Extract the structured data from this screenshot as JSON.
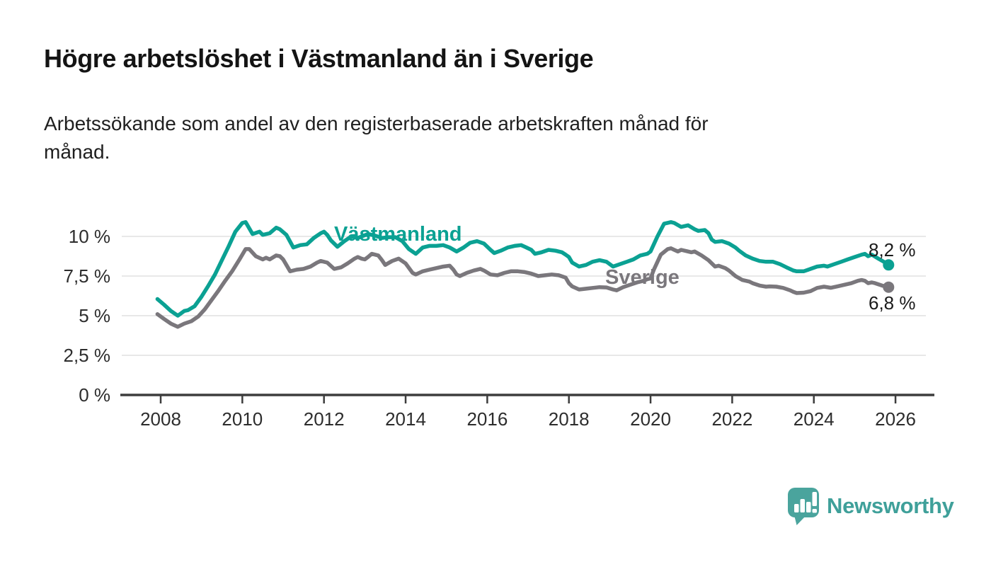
{
  "header": {
    "title": "Högre arbetslöshet i Västmanland än i Sverige",
    "subtitle_line1": "Arbetssökande som andel av den registerbaserade arbetskraften månad för",
    "subtitle_line2": "månad."
  },
  "colors": {
    "vastmanland": "#0BA193",
    "sverige": "#7A777C",
    "brand": "#45A39C",
    "gridline": "#D9D9D9",
    "axis": "#3D3D3D",
    "text": "#1A1A1A"
  },
  "chart_data": {
    "type": "line",
    "title": "Högre arbetslöshet i Västmanland än i Sverige",
    "xlabel": "",
    "ylabel": "",
    "unit": "%",
    "grid": "horizontal",
    "legend_position": "inline-labels",
    "ylim": [
      0,
      11.2
    ],
    "x_axis": {
      "ticks": [
        2008,
        2010,
        2012,
        2014,
        2016,
        2018,
        2020,
        2022,
        2024,
        2026
      ]
    },
    "y_axis": {
      "ticks": [
        {
          "value": 0,
          "label": "0 %"
        },
        {
          "value": 2.5,
          "label": "2,5 %"
        },
        {
          "value": 5,
          "label": "5 %"
        },
        {
          "value": 7.5,
          "label": "7,5 %"
        },
        {
          "value": 10,
          "label": "10 %"
        }
      ]
    },
    "series": [
      {
        "name": "Västmanland",
        "color": "#0BA193",
        "end_label": "8,2 %",
        "end_value": 8.2,
        "points": [
          [
            2007.92,
            6.05
          ],
          [
            2008.08,
            5.7
          ],
          [
            2008.25,
            5.3
          ],
          [
            2008.42,
            5.0
          ],
          [
            2008.58,
            5.3
          ],
          [
            2008.67,
            5.35
          ],
          [
            2008.83,
            5.6
          ],
          [
            2009.0,
            6.2
          ],
          [
            2009.17,
            6.9
          ],
          [
            2009.33,
            7.6
          ],
          [
            2009.5,
            8.5
          ],
          [
            2009.67,
            9.4
          ],
          [
            2009.83,
            10.3
          ],
          [
            2010.0,
            10.85
          ],
          [
            2010.08,
            10.9
          ],
          [
            2010.25,
            10.15
          ],
          [
            2010.42,
            10.3
          ],
          [
            2010.5,
            10.1
          ],
          [
            2010.67,
            10.2
          ],
          [
            2010.83,
            10.55
          ],
          [
            2010.92,
            10.45
          ],
          [
            2011.08,
            10.1
          ],
          [
            2011.25,
            9.3
          ],
          [
            2011.42,
            9.45
          ],
          [
            2011.58,
            9.5
          ],
          [
            2011.75,
            9.9
          ],
          [
            2011.92,
            10.2
          ],
          [
            2012.0,
            10.3
          ],
          [
            2012.08,
            10.1
          ],
          [
            2012.17,
            9.75
          ],
          [
            2012.33,
            9.35
          ],
          [
            2012.5,
            9.7
          ],
          [
            2012.67,
            10.0
          ],
          [
            2012.83,
            9.9
          ],
          [
            2013.08,
            10.15
          ],
          [
            2013.25,
            10.05
          ],
          [
            2013.42,
            9.9
          ],
          [
            2013.58,
            9.95
          ],
          [
            2013.75,
            9.95
          ],
          [
            2013.92,
            9.7
          ],
          [
            2014.08,
            9.2
          ],
          [
            2014.25,
            8.9
          ],
          [
            2014.42,
            9.3
          ],
          [
            2014.58,
            9.4
          ],
          [
            2014.75,
            9.4
          ],
          [
            2014.92,
            9.45
          ],
          [
            2015.08,
            9.3
          ],
          [
            2015.25,
            9.05
          ],
          [
            2015.42,
            9.3
          ],
          [
            2015.58,
            9.6
          ],
          [
            2015.75,
            9.7
          ],
          [
            2015.92,
            9.55
          ],
          [
            2016.08,
            9.15
          ],
          [
            2016.17,
            8.95
          ],
          [
            2016.33,
            9.1
          ],
          [
            2016.5,
            9.3
          ],
          [
            2016.67,
            9.4
          ],
          [
            2016.83,
            9.45
          ],
          [
            2016.92,
            9.35
          ],
          [
            2017.08,
            9.15
          ],
          [
            2017.17,
            8.9
          ],
          [
            2017.33,
            9.0
          ],
          [
            2017.5,
            9.15
          ],
          [
            2017.67,
            9.1
          ],
          [
            2017.83,
            9.0
          ],
          [
            2017.92,
            8.85
          ],
          [
            2018.0,
            8.7
          ],
          [
            2018.08,
            8.35
          ],
          [
            2018.25,
            8.1
          ],
          [
            2018.42,
            8.2
          ],
          [
            2018.58,
            8.4
          ],
          [
            2018.75,
            8.5
          ],
          [
            2018.92,
            8.4
          ],
          [
            2019.0,
            8.25
          ],
          [
            2019.08,
            8.1
          ],
          [
            2019.25,
            8.25
          ],
          [
            2019.42,
            8.4
          ],
          [
            2019.58,
            8.55
          ],
          [
            2019.75,
            8.8
          ],
          [
            2019.92,
            8.9
          ],
          [
            2020.0,
            9.05
          ],
          [
            2020.17,
            10.0
          ],
          [
            2020.33,
            10.8
          ],
          [
            2020.5,
            10.9
          ],
          [
            2020.58,
            10.85
          ],
          [
            2020.75,
            10.6
          ],
          [
            2020.92,
            10.7
          ],
          [
            2021.08,
            10.45
          ],
          [
            2021.17,
            10.35
          ],
          [
            2021.33,
            10.4
          ],
          [
            2021.42,
            10.2
          ],
          [
            2021.5,
            9.8
          ],
          [
            2021.58,
            9.65
          ],
          [
            2021.75,
            9.7
          ],
          [
            2021.92,
            9.55
          ],
          [
            2022.08,
            9.3
          ],
          [
            2022.17,
            9.1
          ],
          [
            2022.33,
            8.8
          ],
          [
            2022.5,
            8.6
          ],
          [
            2022.67,
            8.45
          ],
          [
            2022.83,
            8.4
          ],
          [
            2023.0,
            8.4
          ],
          [
            2023.17,
            8.25
          ],
          [
            2023.33,
            8.05
          ],
          [
            2023.5,
            7.85
          ],
          [
            2023.58,
            7.8
          ],
          [
            2023.75,
            7.8
          ],
          [
            2023.92,
            7.95
          ],
          [
            2024.08,
            8.1
          ],
          [
            2024.25,
            8.15
          ],
          [
            2024.33,
            8.1
          ],
          [
            2024.5,
            8.25
          ],
          [
            2024.67,
            8.4
          ],
          [
            2024.83,
            8.55
          ],
          [
            2025.0,
            8.7
          ],
          [
            2025.17,
            8.85
          ],
          [
            2025.25,
            8.9
          ],
          [
            2025.33,
            8.75
          ],
          [
            2025.42,
            8.85
          ],
          [
            2025.58,
            8.6
          ],
          [
            2025.75,
            8.35
          ],
          [
            2025.83,
            8.2
          ]
        ]
      },
      {
        "name": "Sverige",
        "color": "#7A777C",
        "end_label": "6,8 %",
        "end_value": 6.8,
        "points": [
          [
            2007.92,
            5.1
          ],
          [
            2008.08,
            4.8
          ],
          [
            2008.25,
            4.5
          ],
          [
            2008.42,
            4.3
          ],
          [
            2008.58,
            4.5
          ],
          [
            2008.75,
            4.65
          ],
          [
            2008.92,
            4.95
          ],
          [
            2009.08,
            5.4
          ],
          [
            2009.25,
            6.0
          ],
          [
            2009.42,
            6.6
          ],
          [
            2009.58,
            7.2
          ],
          [
            2009.75,
            7.8
          ],
          [
            2009.92,
            8.5
          ],
          [
            2010.08,
            9.2
          ],
          [
            2010.17,
            9.2
          ],
          [
            2010.33,
            8.75
          ],
          [
            2010.5,
            8.55
          ],
          [
            2010.58,
            8.65
          ],
          [
            2010.67,
            8.55
          ],
          [
            2010.83,
            8.8
          ],
          [
            2010.92,
            8.75
          ],
          [
            2011.0,
            8.55
          ],
          [
            2011.08,
            8.2
          ],
          [
            2011.17,
            7.8
          ],
          [
            2011.33,
            7.9
          ],
          [
            2011.5,
            7.95
          ],
          [
            2011.67,
            8.1
          ],
          [
            2011.83,
            8.35
          ],
          [
            2011.92,
            8.45
          ],
          [
            2012.08,
            8.35
          ],
          [
            2012.25,
            7.95
          ],
          [
            2012.42,
            8.05
          ],
          [
            2012.58,
            8.3
          ],
          [
            2012.75,
            8.6
          ],
          [
            2012.83,
            8.7
          ],
          [
            2012.92,
            8.6
          ],
          [
            2013.0,
            8.55
          ],
          [
            2013.08,
            8.7
          ],
          [
            2013.17,
            8.9
          ],
          [
            2013.33,
            8.8
          ],
          [
            2013.42,
            8.5
          ],
          [
            2013.5,
            8.2
          ],
          [
            2013.67,
            8.45
          ],
          [
            2013.83,
            8.6
          ],
          [
            2014.0,
            8.3
          ],
          [
            2014.17,
            7.7
          ],
          [
            2014.25,
            7.6
          ],
          [
            2014.42,
            7.8
          ],
          [
            2014.58,
            7.9
          ],
          [
            2014.75,
            8.0
          ],
          [
            2014.92,
            8.1
          ],
          [
            2015.08,
            8.15
          ],
          [
            2015.17,
            7.9
          ],
          [
            2015.25,
            7.6
          ],
          [
            2015.33,
            7.5
          ],
          [
            2015.5,
            7.7
          ],
          [
            2015.67,
            7.85
          ],
          [
            2015.83,
            7.95
          ],
          [
            2015.92,
            7.85
          ],
          [
            2016.08,
            7.6
          ],
          [
            2016.25,
            7.55
          ],
          [
            2016.42,
            7.7
          ],
          [
            2016.58,
            7.8
          ],
          [
            2016.75,
            7.8
          ],
          [
            2016.92,
            7.75
          ],
          [
            2017.08,
            7.65
          ],
          [
            2017.25,
            7.5
          ],
          [
            2017.42,
            7.55
          ],
          [
            2017.58,
            7.6
          ],
          [
            2017.75,
            7.55
          ],
          [
            2017.92,
            7.4
          ],
          [
            2018.0,
            7.05
          ],
          [
            2018.08,
            6.85
          ],
          [
            2018.25,
            6.65
          ],
          [
            2018.42,
            6.7
          ],
          [
            2018.58,
            6.75
          ],
          [
            2018.75,
            6.8
          ],
          [
            2018.92,
            6.78
          ],
          [
            2019.08,
            6.65
          ],
          [
            2019.17,
            6.6
          ],
          [
            2019.33,
            6.8
          ],
          [
            2019.5,
            6.95
          ],
          [
            2019.67,
            7.1
          ],
          [
            2019.83,
            7.2
          ],
          [
            2019.92,
            7.3
          ],
          [
            2020.0,
            7.35
          ],
          [
            2020.08,
            7.9
          ],
          [
            2020.25,
            8.85
          ],
          [
            2020.42,
            9.2
          ],
          [
            2020.5,
            9.25
          ],
          [
            2020.58,
            9.15
          ],
          [
            2020.67,
            9.05
          ],
          [
            2020.75,
            9.15
          ],
          [
            2020.92,
            9.05
          ],
          [
            2021.0,
            9.0
          ],
          [
            2021.08,
            9.05
          ],
          [
            2021.25,
            8.8
          ],
          [
            2021.42,
            8.5
          ],
          [
            2021.5,
            8.3
          ],
          [
            2021.58,
            8.1
          ],
          [
            2021.67,
            8.15
          ],
          [
            2021.83,
            8.0
          ],
          [
            2021.92,
            7.85
          ],
          [
            2022.08,
            7.5
          ],
          [
            2022.25,
            7.25
          ],
          [
            2022.42,
            7.15
          ],
          [
            2022.5,
            7.05
          ],
          [
            2022.67,
            6.9
          ],
          [
            2022.83,
            6.83
          ],
          [
            2022.92,
            6.85
          ],
          [
            2023.08,
            6.83
          ],
          [
            2023.25,
            6.75
          ],
          [
            2023.42,
            6.6
          ],
          [
            2023.5,
            6.5
          ],
          [
            2023.58,
            6.43
          ],
          [
            2023.75,
            6.45
          ],
          [
            2023.92,
            6.55
          ],
          [
            2024.08,
            6.75
          ],
          [
            2024.25,
            6.83
          ],
          [
            2024.42,
            6.76
          ],
          [
            2024.58,
            6.85
          ],
          [
            2024.75,
            6.95
          ],
          [
            2024.92,
            7.05
          ],
          [
            2025.08,
            7.2
          ],
          [
            2025.17,
            7.25
          ],
          [
            2025.25,
            7.2
          ],
          [
            2025.33,
            7.05
          ],
          [
            2025.42,
            7.1
          ],
          [
            2025.5,
            7.05
          ],
          [
            2025.67,
            6.9
          ],
          [
            2025.83,
            6.8
          ]
        ]
      }
    ]
  },
  "branding": {
    "logo_text": "Newsworthy",
    "logo_icon": "bar-chart-speech-bubble-icon"
  }
}
